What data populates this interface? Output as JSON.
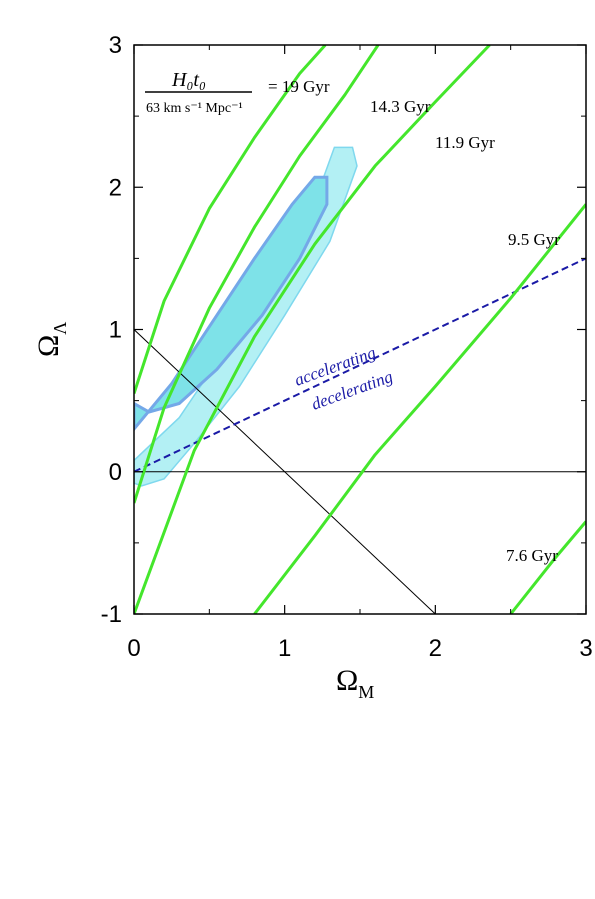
{
  "chart_data": {
    "type": "line",
    "xlabel": "Ω",
    "xlabel_sub": "M",
    "ylabel": "Ω",
    "ylabel_sub": "Λ",
    "xlim": [
      0,
      3
    ],
    "ylim": [
      -1,
      3
    ],
    "x_ticks": [
      "0",
      "1",
      "2",
      "3"
    ],
    "y_ticks": [
      "-1",
      "0",
      "1",
      "2",
      "3"
    ],
    "age_legend": {
      "numerator": "H₀t₀",
      "denominator": "63 km s⁻¹ Mpc⁻¹"
    },
    "age_contours": [
      {
        "label": "= 19 Gyr",
        "points": [
          [
            0.0,
            0.55
          ],
          [
            0.2,
            1.2
          ],
          [
            0.5,
            1.85
          ],
          [
            0.8,
            2.35
          ],
          [
            1.1,
            2.8
          ],
          [
            1.27,
            3.0
          ]
        ]
      },
      {
        "label": "14.3 Gyr",
        "points": [
          [
            0.0,
            -0.22
          ],
          [
            0.2,
            0.45
          ],
          [
            0.5,
            1.15
          ],
          [
            0.8,
            1.72
          ],
          [
            1.1,
            2.22
          ],
          [
            1.4,
            2.65
          ],
          [
            1.62,
            3.0
          ]
        ]
      },
      {
        "label": "11.9 Gyr",
        "points": [
          [
            0.0,
            -1.0
          ],
          [
            0.4,
            0.15
          ],
          [
            0.8,
            0.95
          ],
          [
            1.2,
            1.6
          ],
          [
            1.6,
            2.15
          ],
          [
            2.0,
            2.6
          ],
          [
            2.36,
            3.0
          ]
        ]
      },
      {
        "label": "9.5 Gyr",
        "points": [
          [
            0.8,
            -1.0
          ],
          [
            1.2,
            -0.45
          ],
          [
            1.6,
            0.12
          ],
          [
            2.0,
            0.6
          ],
          [
            2.5,
            1.22
          ],
          [
            3.0,
            1.88
          ]
        ]
      },
      {
        "label": "7.6 Gyr",
        "points": [
          [
            2.5,
            -1.0
          ],
          [
            2.8,
            -0.6
          ],
          [
            3.0,
            -0.35
          ]
        ]
      }
    ],
    "acceleration_line": {
      "points": [
        [
          0,
          0
        ],
        [
          3,
          1.5
        ]
      ],
      "label_above": "accelerating",
      "label_below": "decelerating",
      "color": "#1a1aa6"
    },
    "flat_universe_line": {
      "points": [
        [
          0,
          1
        ],
        [
          2,
          -1
        ]
      ]
    },
    "zero_line": {
      "y": 0
    },
    "confidence_regions": [
      {
        "level": "outer",
        "fill": "#b3f0f4",
        "stroke": "#7fd8ee",
        "points": [
          [
            0.0,
            0.08
          ],
          [
            0.3,
            0.38
          ],
          [
            0.6,
            0.85
          ],
          [
            0.9,
            1.35
          ],
          [
            1.2,
            1.9
          ],
          [
            1.33,
            2.28
          ],
          [
            1.45,
            2.28
          ],
          [
            1.48,
            2.15
          ],
          [
            1.3,
            1.62
          ],
          [
            1.0,
            1.1
          ],
          [
            0.7,
            0.6
          ],
          [
            0.4,
            0.2
          ],
          [
            0.2,
            -0.05
          ],
          [
            0.05,
            -0.1
          ],
          [
            0.0,
            -0.08
          ]
        ]
      },
      {
        "level": "inner",
        "fill": "#7ee2e8",
        "stroke": "#74a8e8",
        "points": [
          [
            0.0,
            0.3
          ],
          [
            0.25,
            0.62
          ],
          [
            0.5,
            1.02
          ],
          [
            0.8,
            1.5
          ],
          [
            1.05,
            1.88
          ],
          [
            1.2,
            2.07
          ],
          [
            1.28,
            2.07
          ],
          [
            1.28,
            1.88
          ],
          [
            1.1,
            1.5
          ],
          [
            0.85,
            1.1
          ],
          [
            0.55,
            0.72
          ],
          [
            0.3,
            0.48
          ],
          [
            0.1,
            0.42
          ],
          [
            0.0,
            0.48
          ]
        ]
      }
    ],
    "colors": {
      "contour": "#44e62c",
      "dashed": "#1a1aa6",
      "axis": "#000000"
    }
  }
}
